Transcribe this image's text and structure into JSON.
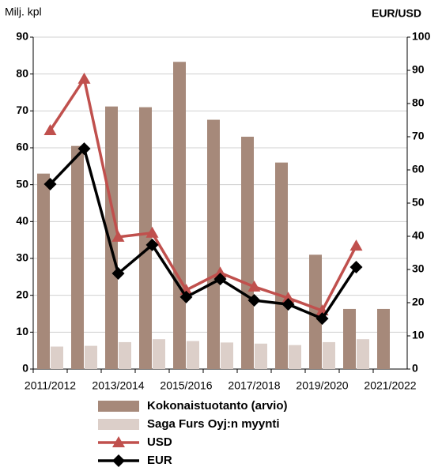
{
  "chart_data": {
    "type": "bar_line",
    "y_label": "Milj. kpl",
    "y2_label": "EUR/USD",
    "categories": [
      "2011/2012",
      null,
      "2013/2014",
      null,
      "2015/2016",
      null,
      "2017/2018",
      null,
      "2019/2020",
      null,
      "2021/2022"
    ],
    "series": [
      {
        "name": "Kokonaistuotanto (arvio)",
        "type": "bar",
        "color": "#a6897a",
        "values": [
          53,
          60.5,
          71.2,
          71,
          83.3,
          67.6,
          63,
          56,
          31,
          16.3,
          16.3
        ]
      },
      {
        "name": "Saga Furs Oyj:n myynti",
        "type": "bar",
        "color": "#dccfc9",
        "values": [
          6.1,
          6.3,
          7.3,
          8.1,
          7.6,
          7.2,
          6.9,
          6.5,
          7.3,
          8.1,
          null
        ]
      },
      {
        "name": "USD",
        "type": "line",
        "axis": "y2",
        "marker": "triangle",
        "color": "#c0504d",
        "values": [
          71.9,
          87.4,
          39.8,
          41,
          23.8,
          29,
          24.8,
          21.4,
          17.6,
          37.1,
          null
        ]
      },
      {
        "name": "EUR",
        "type": "line",
        "axis": "y2",
        "marker": "diamond",
        "color": "#000000",
        "values": [
          55.7,
          66.4,
          28.8,
          37.4,
          21.7,
          27.1,
          20.7,
          19.5,
          15.2,
          30.7,
          null
        ]
      }
    ],
    "ylim": [
      0,
      90
    ],
    "yticks": [
      0,
      10,
      20,
      30,
      40,
      50,
      60,
      70,
      80,
      90
    ],
    "y2lim": [
      0,
      100
    ],
    "y2ticks": [
      0,
      10,
      20,
      30,
      40,
      50,
      60,
      70,
      80,
      90,
      100
    ],
    "grid": true
  }
}
